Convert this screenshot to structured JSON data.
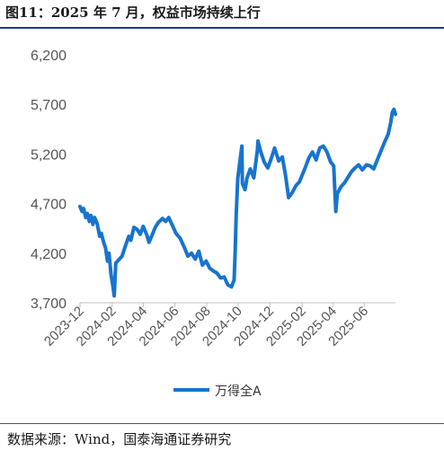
{
  "figure": {
    "title": "图11：2025 年 7 月，权益市场持续上行",
    "source": "数据来源：Wind，国泰海通证券研究"
  },
  "chart_data": {
    "type": "line",
    "title": "",
    "xlabel": "",
    "ylabel": "",
    "ylim": [
      3700,
      6200
    ],
    "y_ticks": [
      "3,700",
      "4,200",
      "4,700",
      "5,200",
      "5,700",
      "6,200"
    ],
    "y_tick_values": [
      3700,
      4200,
      4700,
      5200,
      5700,
      6200
    ],
    "x_ticks": [
      "2023-12",
      "2024-02",
      "2024-04",
      "2024-06",
      "2024-08",
      "2024-10",
      "2024-12",
      "2025-02",
      "2025-04",
      "2025-06"
    ],
    "x_tick_values": [
      "2023-12-01",
      "2024-02-01",
      "2024-04-01",
      "2024-06-01",
      "2024-08-01",
      "2024-10-01",
      "2024-12-01",
      "2025-02-01",
      "2025-04-01",
      "2025-06-01"
    ],
    "x_range": [
      "2023-12-01",
      "2025-07-31"
    ],
    "grid": false,
    "legend_position": "bottom",
    "series_color": "#1874CD",
    "series": [
      {
        "name": "万得全A",
        "points": [
          [
            "2023-12-01",
            4670
          ],
          [
            "2023-12-05",
            4620
          ],
          [
            "2023-12-08",
            4650
          ],
          [
            "2023-12-12",
            4560
          ],
          [
            "2023-12-15",
            4600
          ],
          [
            "2023-12-19",
            4520
          ],
          [
            "2023-12-22",
            4580
          ],
          [
            "2023-12-26",
            4490
          ],
          [
            "2023-12-29",
            4560
          ],
          [
            "2024-01-03",
            4500
          ],
          [
            "2024-01-08",
            4370
          ],
          [
            "2024-01-11",
            4400
          ],
          [
            "2024-01-16",
            4300
          ],
          [
            "2024-01-19",
            4260
          ],
          [
            "2024-01-23",
            4120
          ],
          [
            "2024-01-26",
            4200
          ],
          [
            "2024-01-30",
            3980
          ],
          [
            "2024-02-02",
            3880
          ],
          [
            "2024-02-05",
            3770
          ],
          [
            "2024-02-08",
            4100
          ],
          [
            "2024-02-20",
            4170
          ],
          [
            "2024-02-27",
            4280
          ],
          [
            "2024-03-04",
            4370
          ],
          [
            "2024-03-08",
            4330
          ],
          [
            "2024-03-14",
            4460
          ],
          [
            "2024-03-20",
            4440
          ],
          [
            "2024-03-26",
            4390
          ],
          [
            "2024-04-01",
            4470
          ],
          [
            "2024-04-08",
            4380
          ],
          [
            "2024-04-12",
            4310
          ],
          [
            "2024-04-18",
            4380
          ],
          [
            "2024-04-24",
            4460
          ],
          [
            "2024-04-30",
            4510
          ],
          [
            "2024-05-08",
            4550
          ],
          [
            "2024-05-14",
            4520
          ],
          [
            "2024-05-20",
            4560
          ],
          [
            "2024-05-27",
            4480
          ],
          [
            "2024-06-03",
            4400
          ],
          [
            "2024-06-11",
            4350
          ],
          [
            "2024-06-19",
            4260
          ],
          [
            "2024-06-26",
            4170
          ],
          [
            "2024-07-03",
            4200
          ],
          [
            "2024-07-10",
            4140
          ],
          [
            "2024-07-17",
            4220
          ],
          [
            "2024-07-24",
            4080
          ],
          [
            "2024-07-31",
            4120
          ],
          [
            "2024-08-07",
            4050
          ],
          [
            "2024-08-14",
            4020
          ],
          [
            "2024-08-21",
            4000
          ],
          [
            "2024-08-28",
            3950
          ],
          [
            "2024-09-04",
            3960
          ],
          [
            "2024-09-11",
            3880
          ],
          [
            "2024-09-18",
            3860
          ],
          [
            "2024-09-23",
            3930
          ],
          [
            "2024-09-25",
            4200
          ],
          [
            "2024-09-27",
            4580
          ],
          [
            "2024-09-30",
            4950
          ],
          [
            "2024-10-08",
            5280
          ],
          [
            "2024-10-09",
            4900
          ],
          [
            "2024-10-14",
            4840
          ],
          [
            "2024-10-18",
            4960
          ],
          [
            "2024-10-24",
            5050
          ],
          [
            "2024-10-31",
            4960
          ],
          [
            "2024-11-07",
            5240
          ],
          [
            "2024-11-08",
            5330
          ],
          [
            "2024-11-13",
            5230
          ],
          [
            "2024-11-20",
            5120
          ],
          [
            "2024-11-27",
            5060
          ],
          [
            "2024-12-04",
            5160
          ],
          [
            "2024-12-10",
            5260
          ],
          [
            "2024-12-18",
            5130
          ],
          [
            "2024-12-25",
            5170
          ],
          [
            "2024-12-31",
            4990
          ],
          [
            "2025-01-06",
            4760
          ],
          [
            "2025-01-13",
            4810
          ],
          [
            "2025-01-20",
            4880
          ],
          [
            "2025-01-27",
            4920
          ],
          [
            "2025-02-07",
            5060
          ],
          [
            "2025-02-14",
            5160
          ],
          [
            "2025-02-21",
            5220
          ],
          [
            "2025-02-28",
            5140
          ],
          [
            "2025-03-07",
            5260
          ],
          [
            "2025-03-14",
            5280
          ],
          [
            "2025-03-21",
            5220
          ],
          [
            "2025-03-28",
            5120
          ],
          [
            "2025-04-03",
            5080
          ],
          [
            "2025-04-07",
            4620
          ],
          [
            "2025-04-10",
            4800
          ],
          [
            "2025-04-17",
            4870
          ],
          [
            "2025-04-24",
            4910
          ],
          [
            "2025-05-07",
            5020
          ],
          [
            "2025-05-14",
            5060
          ],
          [
            "2025-05-21",
            5090
          ],
          [
            "2025-05-28",
            5040
          ],
          [
            "2025-06-05",
            5090
          ],
          [
            "2025-06-12",
            5080
          ],
          [
            "2025-06-19",
            5050
          ],
          [
            "2025-06-26",
            5140
          ],
          [
            "2025-07-03",
            5230
          ],
          [
            "2025-07-10",
            5320
          ],
          [
            "2025-07-17",
            5400
          ],
          [
            "2025-07-22",
            5520
          ],
          [
            "2025-07-25",
            5620
          ],
          [
            "2025-07-28",
            5650
          ],
          [
            "2025-07-31",
            5600
          ]
        ]
      }
    ]
  }
}
